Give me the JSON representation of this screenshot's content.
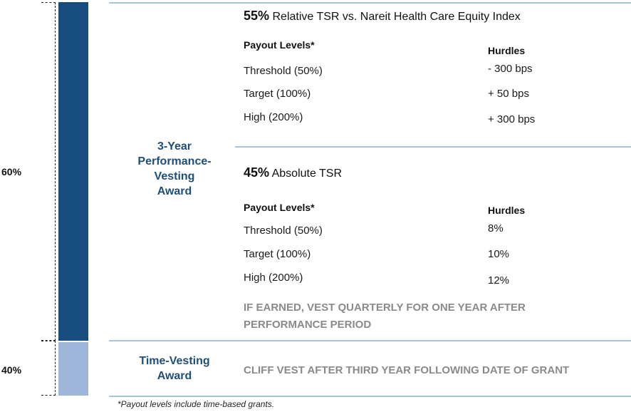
{
  "left_labels": {
    "top_pct": "60%",
    "bottom_pct": "40%"
  },
  "colors": {
    "bar_performance": "#174c7e",
    "bar_time": "#9db6da",
    "divider": "#a8c3de",
    "award_text": "#1f4e79",
    "note_text": "#8a8a8a"
  },
  "performance_award": {
    "label_line1": "3-Year",
    "label_line2": "Performance-",
    "label_line3": "Vesting",
    "label_line4": "Award"
  },
  "relative_tsr": {
    "weight": "55%",
    "title": "Relative TSR vs. Nareit Health Care Equity Index",
    "col_payout": "Payout Levels*",
    "col_hurdles": "Hurdles",
    "rows": [
      {
        "level": "Threshold (50%)",
        "hurdle": "- 300 bps"
      },
      {
        "level": "Target (100%)",
        "hurdle": "+ 50 bps"
      },
      {
        "level": "High (200%)",
        "hurdle": "+ 300 bps"
      }
    ]
  },
  "absolute_tsr": {
    "weight": "45%",
    "title": "Absolute TSR",
    "col_payout": "Payout Levels*",
    "col_hurdles": "Hurdles",
    "rows": [
      {
        "level": "Threshold (50%)",
        "hurdle": "8%"
      },
      {
        "level": "Target (100%)",
        "hurdle": "10%"
      },
      {
        "level": "High (200%)",
        "hurdle": "12%"
      }
    ],
    "note_line1": "IF EARNED, VEST QUARTERLY FOR ONE YEAR AFTER",
    "note_line2": "PERFORMANCE PERIOD"
  },
  "time_award": {
    "label_line1": "Time-Vesting",
    "label_line2": "Award",
    "note": "CLIFF VEST AFTER THIRD YEAR FOLLOWING DATE OF GRANT"
  },
  "footnote": "*Payout levels include time-based grants."
}
